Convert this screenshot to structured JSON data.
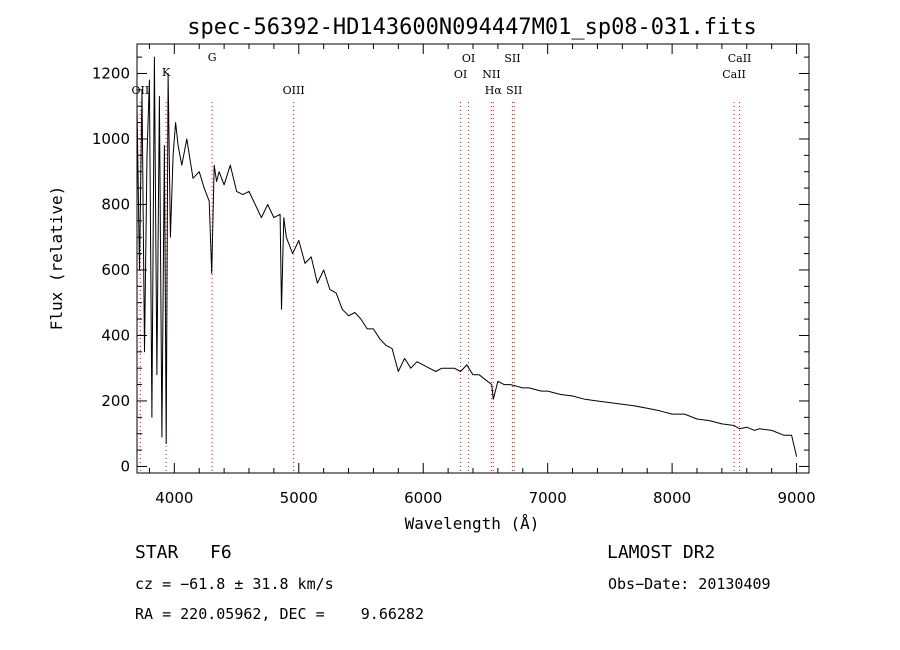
{
  "chart_data": {
    "type": "line",
    "title": "spec-56392-HD143600N094447M01_sp08-031.fits",
    "xlabel": "Wavelength (Å)",
    "ylabel": "Flux (relative)",
    "xlim": [
      3700,
      9100
    ],
    "ylim": [
      -20,
      1290
    ],
    "xticks": [
      4000,
      5000,
      6000,
      7000,
      8000,
      9000
    ],
    "yticks": [
      0,
      200,
      400,
      600,
      800,
      1000,
      1200
    ],
    "series": [
      {
        "x": [
          3700,
          3720,
          3740,
          3760,
          3780,
          3800,
          3820,
          3840,
          3860,
          3880,
          3900,
          3920,
          3935,
          3950,
          3968,
          3990,
          4010,
          4030,
          4060,
          4100,
          4150,
          4200,
          4240,
          4280,
          4300,
          4320,
          4340,
          4360,
          4400,
          4450,
          4500,
          4550,
          4600,
          4650,
          4700,
          4750,
          4800,
          4850,
          4861,
          4880,
          4900,
          4950,
          5000,
          5050,
          5100,
          5150,
          5200,
          5250,
          5300,
          5350,
          5400,
          5450,
          5500,
          5550,
          5600,
          5650,
          5700,
          5750,
          5800,
          5850,
          5900,
          5950,
          6000,
          6050,
          6100,
          6150,
          6200,
          6250,
          6300,
          6350,
          6400,
          6450,
          6500,
          6550,
          6563,
          6600,
          6650,
          6700,
          6750,
          6800,
          6850,
          6900,
          6950,
          7000,
          7100,
          7200,
          7300,
          7400,
          7500,
          7600,
          7700,
          7800,
          7900,
          8000,
          8100,
          8200,
          8300,
          8400,
          8498,
          8542,
          8600,
          8662,
          8700,
          8800,
          8900,
          8960,
          9000
        ],
        "values": [
          1100,
          600,
          1150,
          350,
          950,
          1180,
          150,
          1250,
          280,
          1130,
          90,
          980,
          70,
          1200,
          700,
          950,
          1050,
          980,
          920,
          1000,
          880,
          900,
          850,
          810,
          590,
          920,
          870,
          900,
          860,
          920,
          840,
          830,
          840,
          800,
          760,
          800,
          760,
          770,
          480,
          760,
          700,
          650,
          690,
          620,
          640,
          560,
          600,
          540,
          530,
          480,
          460,
          470,
          450,
          420,
          420,
          390,
          370,
          360,
          290,
          330,
          300,
          320,
          310,
          300,
          290,
          300,
          300,
          300,
          290,
          310,
          280,
          280,
          265,
          250,
          205,
          260,
          250,
          250,
          245,
          240,
          240,
          235,
          230,
          230,
          220,
          215,
          205,
          200,
          195,
          190,
          185,
          178,
          170,
          160,
          160,
          145,
          140,
          130,
          125,
          115,
          120,
          110,
          115,
          110,
          95,
          95,
          30
        ]
      }
    ],
    "spectral_lines": [
      {
        "label": "OII",
        "x": 3727
      },
      {
        "label": "K",
        "x": 3934
      },
      {
        "label": "G",
        "x": 4304
      },
      {
        "label": "OIII",
        "x": 4959
      },
      {
        "label": "OI",
        "x": 6300
      },
      {
        "label": "OI",
        "x": 6364
      },
      {
        "label": "NII",
        "x": 6548
      },
      {
        "label": "Hα",
        "x": 6563
      },
      {
        "label": "SII",
        "x": 6717
      },
      {
        "label": "SII",
        "x": 6731
      },
      {
        "label": "CaII",
        "x": 8498
      },
      {
        "label": "CaII",
        "x": 8542
      }
    ],
    "colors": {
      "spectrum": "#000000",
      "line_markers": "#ff0000",
      "axes": "#000000"
    }
  },
  "info": {
    "object_class": "STAR",
    "subclass": "F6",
    "survey": "LAMOST DR2",
    "cz": "cz = −61.8 ± 31.8 km/s",
    "obs_date": "Obs−Date: 20130409",
    "coords": "RA = 220.05962, DEC =    9.66282"
  }
}
